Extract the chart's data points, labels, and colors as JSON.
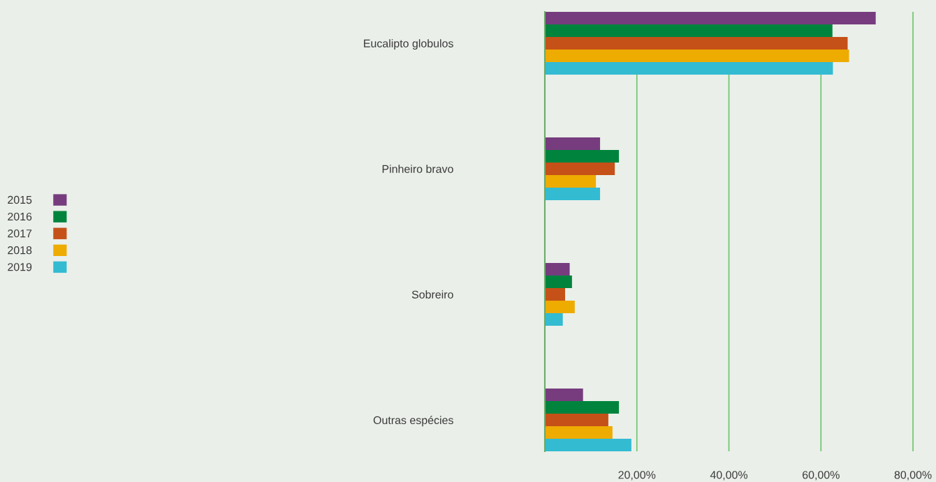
{
  "chart_data": {
    "type": "bar",
    "orientation": "horizontal",
    "categories": [
      "Eucalipto globulos",
      "Pinheiro bravo",
      "Sobreiro",
      "Outras espécies"
    ],
    "series": [
      {
        "name": "2015",
        "color": "#763c7e",
        "values": [
          71.9,
          12.0,
          5.4,
          8.3
        ]
      },
      {
        "name": "2016",
        "color": "#00843d",
        "values": [
          62.5,
          16.1,
          5.9,
          16.1
        ]
      },
      {
        "name": "2017",
        "color": "#c55118",
        "values": [
          65.8,
          15.2,
          4.4,
          13.8
        ]
      },
      {
        "name": "2018",
        "color": "#eeab00",
        "values": [
          66.1,
          11.1,
          6.5,
          14.7
        ]
      },
      {
        "name": "2019",
        "color": "#33bbd2",
        "values": [
          62.6,
          12.0,
          3.9,
          18.8
        ]
      }
    ],
    "xlim": [
      0,
      85
    ],
    "xticks": [
      {
        "value": 20,
        "label": "20,00%"
      },
      {
        "value": 40,
        "label": "40,00%"
      },
      {
        "value": 60,
        "label": "60,00%"
      },
      {
        "value": 80,
        "label": "80,00%"
      }
    ],
    "grid": "x",
    "legend": "left"
  }
}
